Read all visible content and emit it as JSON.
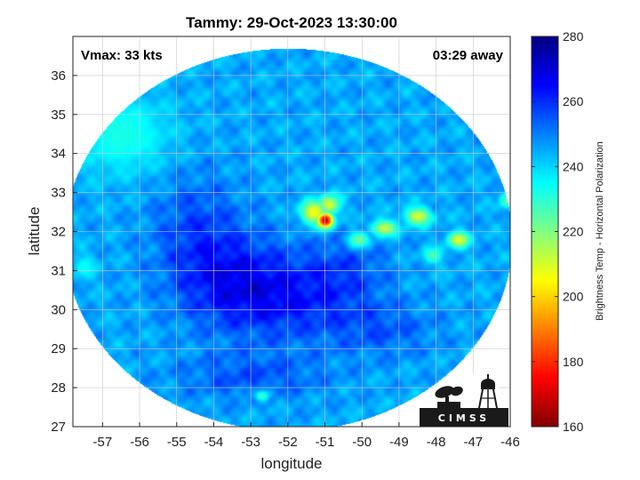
{
  "title": "Tammy: 29-Oct-2023 13:30:00",
  "vmax_label": "Vmax: 33 kts",
  "time_label": "03:29 away",
  "x_axis": {
    "label": "longitude",
    "min": -57.8,
    "max": -46,
    "ticks": [
      -57,
      -56,
      -55,
      -54,
      -53,
      -52,
      -51,
      -50,
      -49,
      -48,
      -47,
      -46
    ]
  },
  "y_axis": {
    "label": "latitude",
    "min": 27,
    "max": 37,
    "ticks": [
      27,
      28,
      29,
      30,
      31,
      32,
      33,
      34,
      35,
      36
    ]
  },
  "colorbar": {
    "label": "Brightness Temp - Horizontal Polarization",
    "min": 160,
    "max": 280,
    "ticks": [
      160,
      180,
      200,
      220,
      240,
      260,
      280
    ],
    "colormap": "jet"
  },
  "logo_text": "CIMSS",
  "chart_data": {
    "type": "heatmap",
    "title": "Tammy: 29-Oct-2023 13:30:00",
    "xlabel": "longitude",
    "ylabel": "latitude",
    "xlim": [
      -57.8,
      -46
    ],
    "ylim": [
      27,
      37
    ],
    "grid": true,
    "swath_center": [
      -52,
      31.8
    ],
    "colorbar_label": "Brightness Temp - Horizontal Polarization",
    "colorbar_range": [
      160,
      280
    ],
    "background_tb": 245,
    "warm_features": [
      {
        "lon": -53.5,
        "lat": 30.8,
        "tb": 262,
        "sx": 1.6,
        "sy": 1.2
      },
      {
        "lon": -52.0,
        "lat": 30.2,
        "tb": 258,
        "sx": 1.8,
        "sy": 1.0
      },
      {
        "lon": -54.5,
        "lat": 32.2,
        "tb": 255,
        "sx": 1.2,
        "sy": 1.4
      },
      {
        "lon": -50.5,
        "lat": 31.0,
        "tb": 255,
        "sx": 1.2,
        "sy": 0.9
      },
      {
        "lon": -53.0,
        "lat": 28.3,
        "tb": 255,
        "sx": 2.0,
        "sy": 0.6
      },
      {
        "lon": -49.5,
        "lat": 29.5,
        "tb": 254,
        "sx": 1.5,
        "sy": 0.7
      }
    ],
    "cold_features": [
      {
        "lon": -51.0,
        "lat": 32.3,
        "tb": 168,
        "sx": 0.22,
        "sy": 0.2
      },
      {
        "lon": -51.3,
        "lat": 32.5,
        "tb": 205,
        "sx": 0.35,
        "sy": 0.3
      },
      {
        "lon": -50.9,
        "lat": 32.7,
        "tb": 210,
        "sx": 0.3,
        "sy": 0.25
      },
      {
        "lon": -48.5,
        "lat": 32.4,
        "tb": 210,
        "sx": 0.35,
        "sy": 0.22
      },
      {
        "lon": -49.4,
        "lat": 32.1,
        "tb": 212,
        "sx": 0.35,
        "sy": 0.2
      },
      {
        "lon": -47.4,
        "lat": 31.8,
        "tb": 208,
        "sx": 0.28,
        "sy": 0.2
      },
      {
        "lon": -50.1,
        "lat": 31.8,
        "tb": 222,
        "sx": 0.3,
        "sy": 0.2
      },
      {
        "lon": -48.1,
        "lat": 31.4,
        "tb": 226,
        "sx": 0.25,
        "sy": 0.2
      },
      {
        "lon": -52.7,
        "lat": 27.8,
        "tb": 228,
        "sx": 0.2,
        "sy": 0.15
      },
      {
        "lon": -46.1,
        "lat": 32.8,
        "tb": 225,
        "sx": 0.2,
        "sy": 0.2
      },
      {
        "lon": -56.5,
        "lat": 34.5,
        "tb": 232,
        "sx": 1.3,
        "sy": 1.0
      },
      {
        "lon": -57.5,
        "lat": 31.1,
        "tb": 234,
        "sx": 0.3,
        "sy": 0.3
      }
    ]
  }
}
